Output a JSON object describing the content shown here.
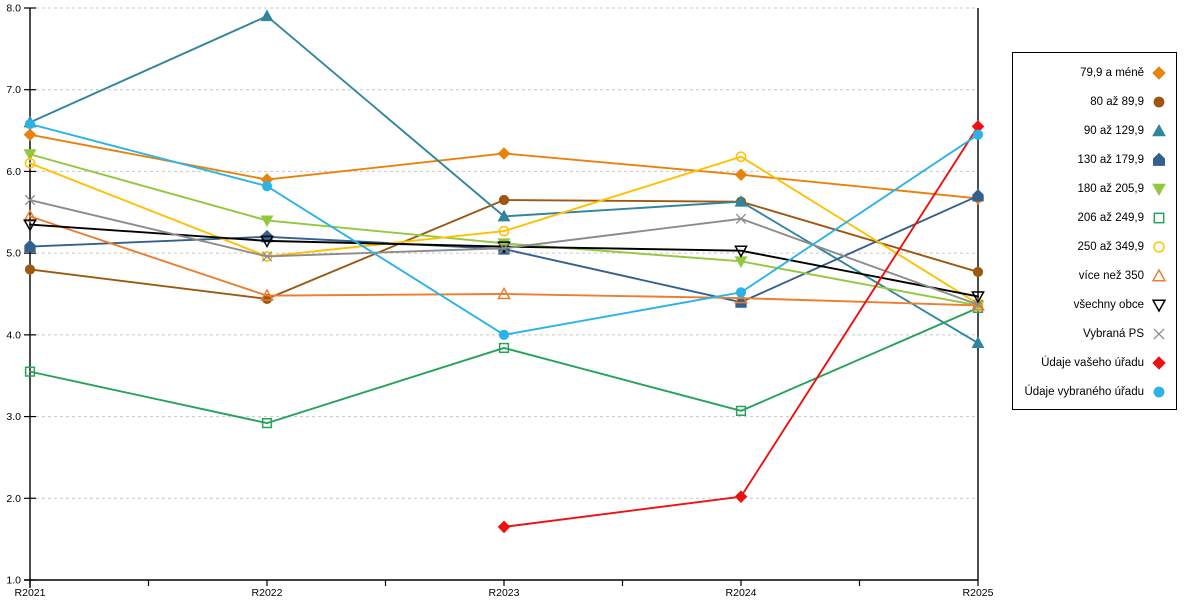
{
  "chart_data": {
    "type": "line",
    "title": "",
    "xlabel": "",
    "ylabel": "",
    "categories": [
      "R2021",
      "R2022",
      "R2023",
      "R2024",
      "R2025"
    ],
    "y_axis": {
      "min": 1.0,
      "max": 8.0,
      "step": 1.0,
      "tick_labels": [
        "1.0",
        "2.0",
        "3.0",
        "4.0",
        "5.0",
        "6.0",
        "7.0",
        "8.0"
      ]
    },
    "grid": "horizontal dashed gridlines at each 1.0",
    "legend_position": "right",
    "colors": {
      "axis": "#000000",
      "gridline": "#C6C6C6",
      "background": "#FFFFFF"
    },
    "series": [
      {
        "name": "79,9 a méně",
        "color": "#E8820C",
        "marker": "diamond",
        "filled": true,
        "values": [
          6.45,
          5.9,
          6.22,
          5.96,
          5.67
        ]
      },
      {
        "name": "80 až 89,9",
        "color": "#9C5710",
        "marker": "circle",
        "filled": true,
        "values": [
          4.8,
          4.44,
          5.65,
          5.63,
          4.77
        ]
      },
      {
        "name": "90 až 129,9",
        "color": "#31859C",
        "marker": "triangle-up",
        "filled": true,
        "values": [
          6.6,
          7.9,
          5.45,
          5.63,
          3.9
        ]
      },
      {
        "name": "130 až 179,9",
        "color": "#33608C",
        "marker": "pentagon",
        "filled": true,
        "values": [
          5.08,
          5.2,
          5.05,
          4.4,
          5.7
        ]
      },
      {
        "name": "180 až 205,9",
        "color": "#92C83E",
        "marker": "triangle-down",
        "filled": true,
        "values": [
          6.21,
          5.4,
          5.12,
          4.9,
          4.36
        ]
      },
      {
        "name": "206 až 249,9",
        "color": "#27A25A",
        "marker": "square",
        "filled": false,
        "values": [
          3.55,
          2.92,
          3.84,
          3.07,
          4.33
        ]
      },
      {
        "name": "250 až 349,9",
        "color": "#FFC000",
        "marker": "circle",
        "filled": false,
        "values": [
          6.1,
          4.96,
          5.27,
          6.18,
          4.38
        ]
      },
      {
        "name": "více než 350",
        "color": "#ED7D31",
        "marker": "triangle-up",
        "filled": false,
        "values": [
          5.45,
          4.48,
          4.5,
          4.45,
          4.36
        ]
      },
      {
        "name": "všechny obce",
        "color": "#000000",
        "marker": "triangle-down",
        "filled": false,
        "values": [
          5.35,
          5.15,
          5.08,
          5.03,
          4.47
        ]
      },
      {
        "name": "Vybraná PS",
        "color": "#8C8C8C",
        "marker": "x",
        "filled": false,
        "values": [
          5.65,
          4.96,
          5.06,
          5.42,
          4.37
        ]
      },
      {
        "name": "Údaje vašeho úřadu",
        "color": "#EE1111",
        "marker": "diamond",
        "filled": true,
        "values": [
          null,
          null,
          1.65,
          2.02,
          6.55
        ]
      },
      {
        "name": "Údaje vybraného úřadu",
        "color": "#2BB3E8",
        "marker": "circle",
        "filled": true,
        "values": [
          6.58,
          5.82,
          4.0,
          4.52,
          6.45
        ]
      }
    ]
  }
}
